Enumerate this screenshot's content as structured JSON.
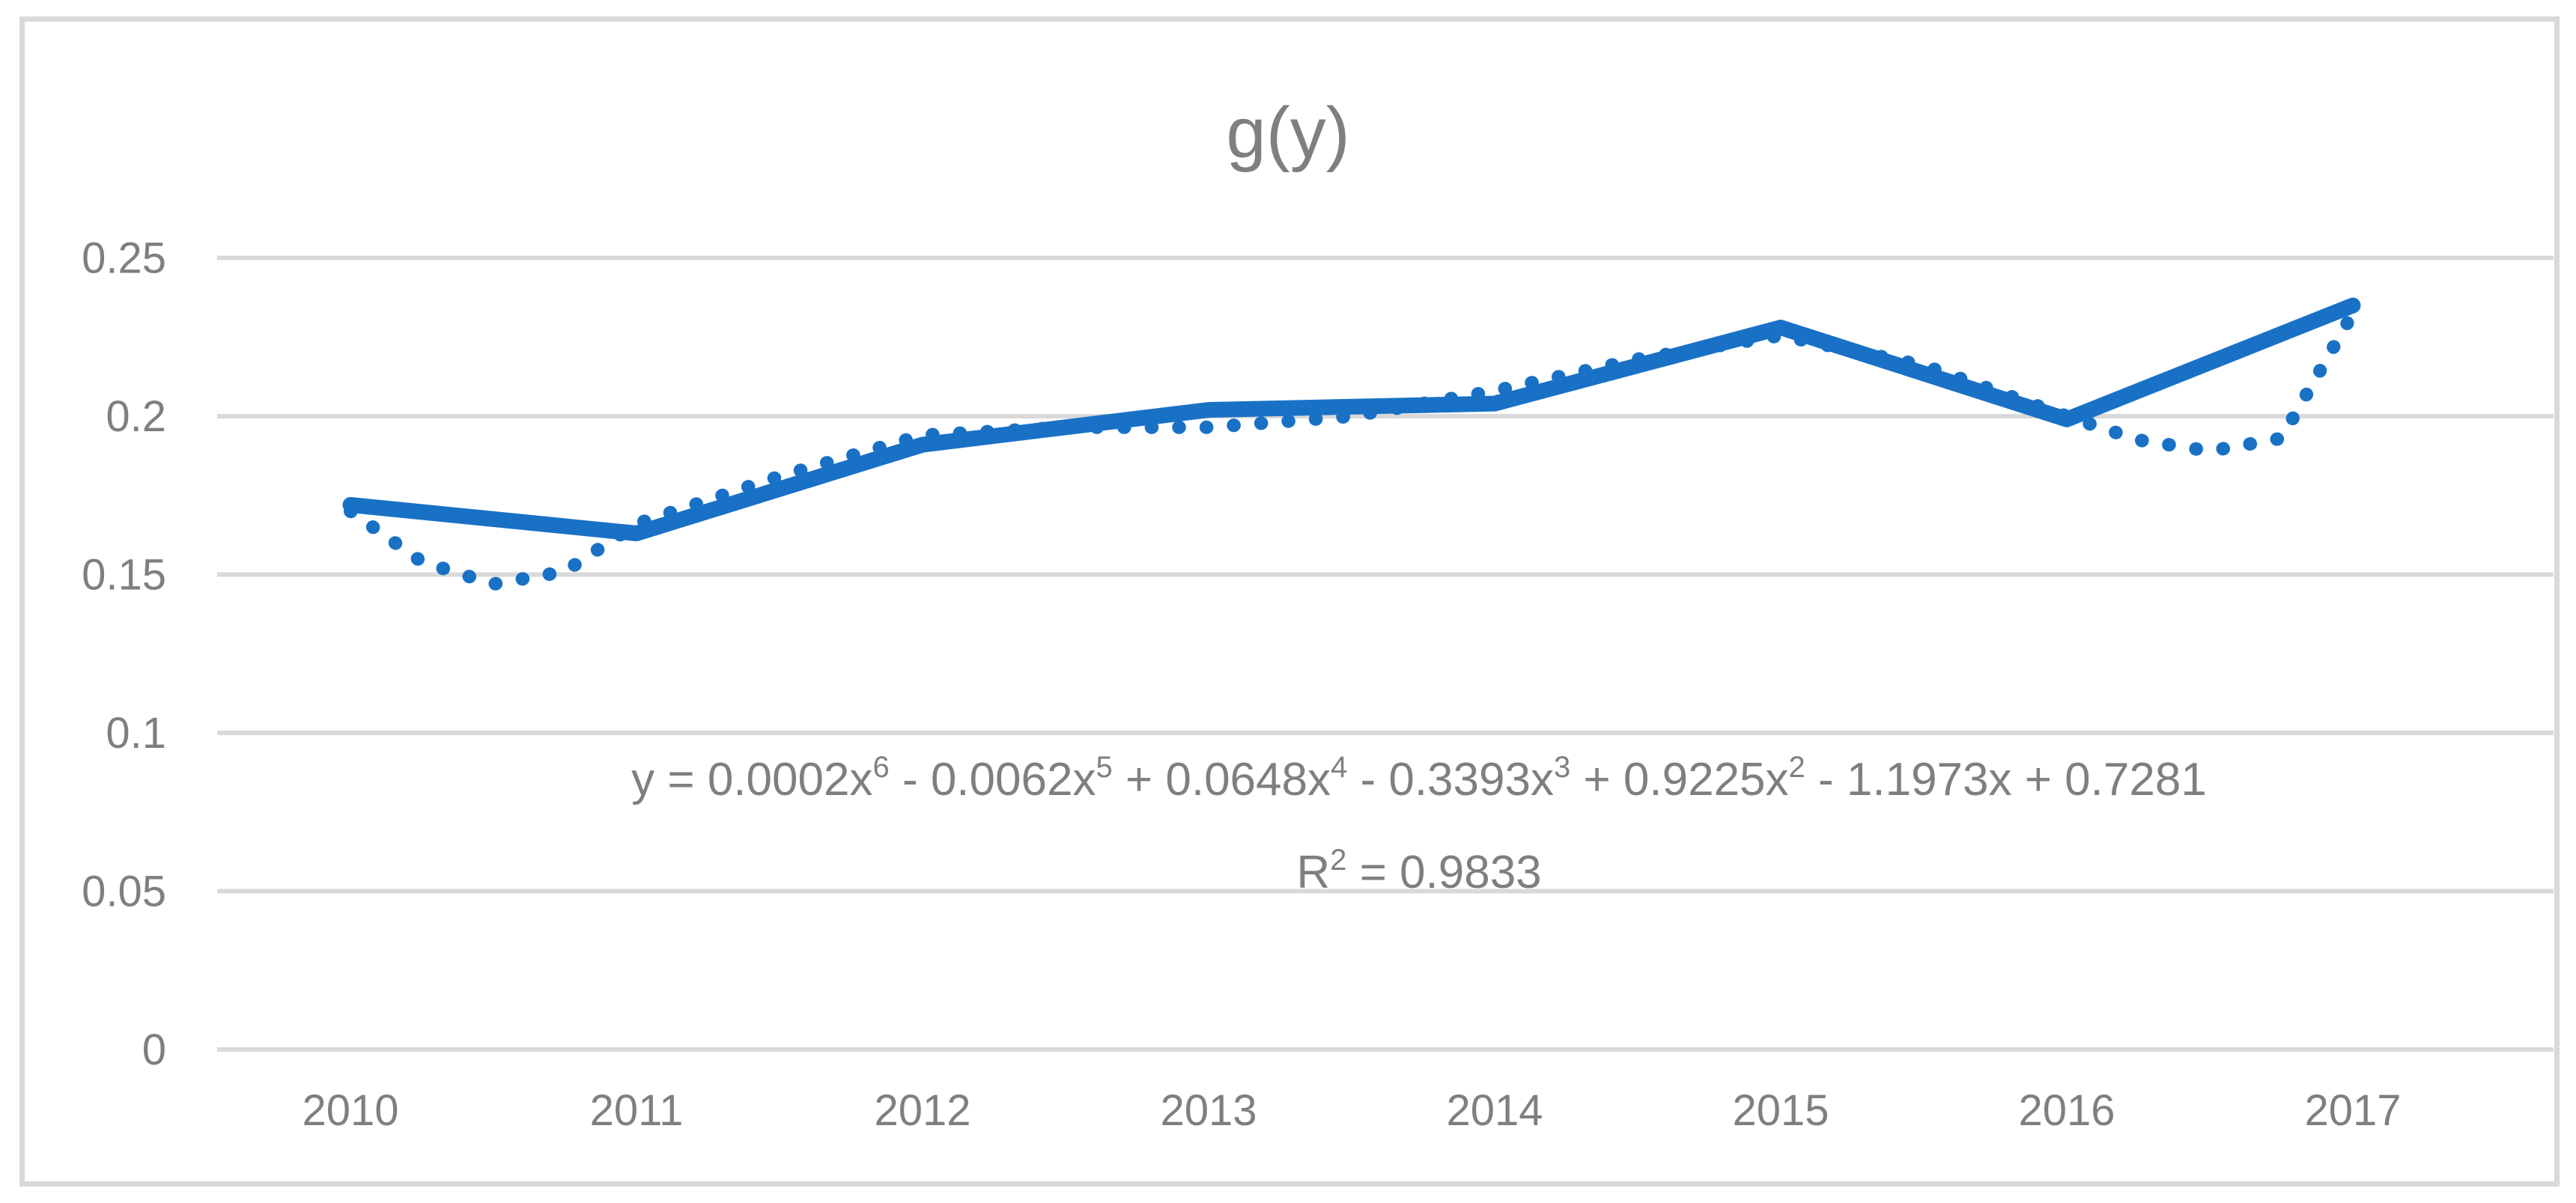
{
  "window": {
    "background": "#FFFFFF",
    "border_color": "#D9D9D9"
  },
  "chart_data": {
    "type": "line",
    "title": "g(y)",
    "x": [
      2010,
      2011,
      2012,
      2013,
      2014,
      2015,
      2016,
      2017
    ],
    "x_labels": [
      "2010",
      "2011",
      "2012",
      "2013",
      "2014",
      "2015",
      "2016",
      "2017"
    ],
    "series": [
      {
        "name": "g(y)",
        "style": "solid",
        "color": "#1971C6",
        "values": [
          0.172,
          0.163,
          0.191,
          0.202,
          0.204,
          0.228,
          0.199,
          0.235
        ]
      }
    ],
    "trendline": {
      "name": "polynomial-trendline",
      "type": "polynomial",
      "order": 6,
      "style": "dotted",
      "color": "#1971C6",
      "equation_text": "y = 0.0002x^6 - 0.0062x^5 + 0.0648x^4 - 0.3393x^3 + 0.9225x^2 - 1.1973x + 0.7281",
      "equation_segments": [
        {
          "t": "y = 0.0002x"
        },
        {
          "s": "6"
        },
        {
          "t": " - 0.0062x"
        },
        {
          "s": "5"
        },
        {
          "t": " + 0.0648x"
        },
        {
          "s": "4"
        },
        {
          "t": " - 0.3393x"
        },
        {
          "s": "3"
        },
        {
          "t": " + 0.9225x"
        },
        {
          "s": "2"
        },
        {
          "t": " - 1.1973x + 0.7281"
        }
      ],
      "r2_text": "R^2 = 0.9833",
      "r2_segments": [
        {
          "t": "R"
        },
        {
          "s": "2"
        },
        {
          "t": " = 0.9833"
        }
      ],
      "points": [
        [
          2010.0,
          0.17
        ],
        [
          2010.25,
          0.154
        ],
        [
          2010.5,
          0.147
        ],
        [
          2010.75,
          0.151
        ],
        [
          2011.0,
          0.166
        ],
        [
          2011.5,
          0.181
        ],
        [
          2012.0,
          0.194
        ],
        [
          2012.5,
          0.1965
        ],
        [
          2013.0,
          0.1965
        ],
        [
          2013.5,
          0.2
        ],
        [
          2014.0,
          0.208
        ],
        [
          2014.5,
          0.218
        ],
        [
          2015.0,
          0.2255
        ],
        [
          2015.5,
          0.216
        ],
        [
          2016.0,
          0.2
        ],
        [
          2016.25,
          0.1925
        ],
        [
          2016.5,
          0.189
        ],
        [
          2016.75,
          0.193
        ],
        [
          2017.0,
          0.2325
        ]
      ]
    },
    "ylim": [
      0,
      0.25
    ],
    "yticks": [
      0,
      0.05,
      0.1,
      0.15,
      0.2,
      0.25
    ],
    "ytick_labels": [
      "0",
      "0.05",
      "0.1",
      "0.15",
      "0.2",
      "0.25"
    ],
    "grid": true,
    "gridline_color": "#D9D9D9",
    "label_color": "#7F7F7F",
    "legend": "none"
  }
}
